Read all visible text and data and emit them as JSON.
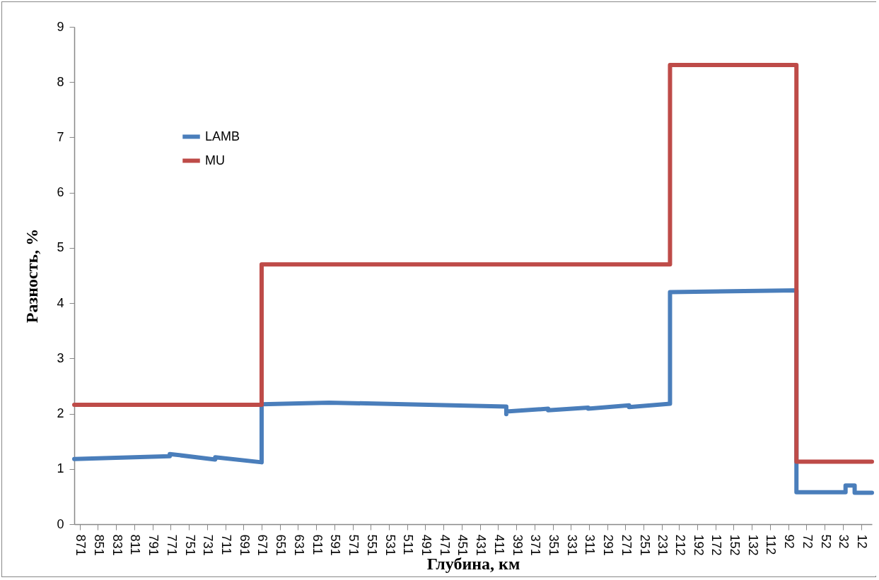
{
  "chart_data": {
    "type": "line",
    "xlabel": "Глубина, км",
    "ylabel": "Разность, %",
    "xlim": [
      877,
      0
    ],
    "ylim": [
      0,
      9
    ],
    "xticks": [
      871,
      851,
      831,
      811,
      791,
      771,
      751,
      731,
      711,
      691,
      671,
      651,
      631,
      611,
      591,
      571,
      551,
      531,
      511,
      491,
      471,
      451,
      431,
      411,
      391,
      371,
      351,
      331,
      311,
      291,
      271,
      251,
      231,
      212,
      192,
      172,
      152,
      132,
      112,
      92,
      72,
      52,
      32,
      12
    ],
    "yticks": [
      0,
      1,
      2,
      3,
      4,
      5,
      6,
      7,
      8,
      9
    ],
    "grid": false,
    "legend": "top left",
    "line_style": "solid",
    "marker": "none",
    "series": [
      {
        "name": "LAMB",
        "color": "#4a7ebb",
        "x": [
          877,
          772,
          772,
          722,
          722,
          671,
          671,
          597,
          402,
          402,
          402,
          356,
          356,
          312,
          312,
          267,
          267,
          222,
          222,
          83,
          83,
          29,
          29,
          19,
          19,
          0
        ],
        "values": [
          1.18,
          1.23,
          1.27,
          1.17,
          1.21,
          1.12,
          2.17,
          2.2,
          2.13,
          1.99,
          2.04,
          2.09,
          2.06,
          2.11,
          2.09,
          2.15,
          2.12,
          2.18,
          4.2,
          4.23,
          0.58,
          0.58,
          0.7,
          0.7,
          0.57,
          0.57
        ]
      },
      {
        "name": "MU",
        "color": "#be4b48",
        "x": [
          877,
          671,
          671,
          222,
          222,
          83,
          83,
          0
        ],
        "values": [
          2.16,
          2.16,
          4.7,
          4.7,
          8.31,
          8.31,
          1.13,
          1.13
        ]
      }
    ]
  }
}
